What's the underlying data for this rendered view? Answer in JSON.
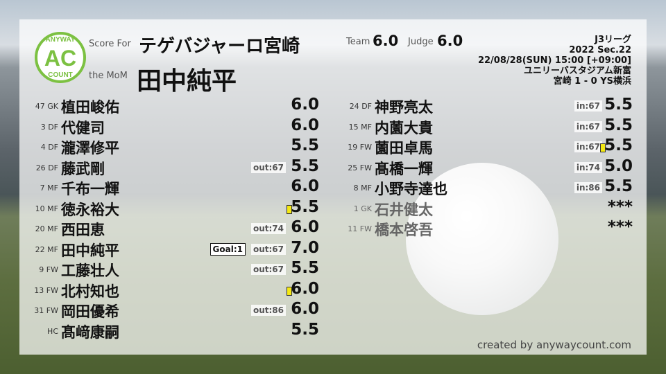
{
  "header": {
    "score_for_label": "Score For",
    "team_name": "テゲバジャーロ宮崎",
    "mom_label": "the MoM",
    "mom_name": "田中純平",
    "team_label": "Team",
    "team_score": "6.0",
    "judge_label": "Judge",
    "judge_score": "6.0"
  },
  "logo": {
    "top": "ANYWAY",
    "mid": "AC",
    "bottom": "COUNT",
    "color": "#7cc142"
  },
  "match": {
    "league": "J3リーグ",
    "section": "2022 Sec.22",
    "datetime": "22/08/28(SUN) 15:00 [+09:00]",
    "stadium": "ユニリーバスタジアム新富",
    "result": "宮崎 1 - 0 YS横浜"
  },
  "left_players": [
    {
      "num": "47",
      "pos": "GK",
      "name": "植田峻佑",
      "score": "6.0"
    },
    {
      "num": "3",
      "pos": "DF",
      "name": "代健司",
      "score": "6.0"
    },
    {
      "num": "4",
      "pos": "DF",
      "name": "瀧澤修平",
      "score": "5.5"
    },
    {
      "num": "26",
      "pos": "DF",
      "name": "藤武剛",
      "score": "5.5",
      "sub": "out:67"
    },
    {
      "num": "7",
      "pos": "MF",
      "name": "千布一輝",
      "score": "6.0"
    },
    {
      "num": "10",
      "pos": "MF",
      "name": "徳永裕大",
      "score": "5.5",
      "yellow": true
    },
    {
      "num": "20",
      "pos": "MF",
      "name": "西田恵",
      "score": "6.0",
      "sub": "out:74"
    },
    {
      "num": "22",
      "pos": "MF",
      "name": "田中純平",
      "score": "7.0",
      "sub": "out:67",
      "goal": "Goal:1"
    },
    {
      "num": "9",
      "pos": "FW",
      "name": "工藤壮人",
      "score": "5.5",
      "sub": "out:67"
    },
    {
      "num": "13",
      "pos": "FW",
      "name": "北村知也",
      "score": "6.0",
      "yellow": true
    },
    {
      "num": "31",
      "pos": "FW",
      "name": "岡田優希",
      "score": "6.0",
      "sub": "out:86"
    },
    {
      "num": "",
      "pos": "HC",
      "name": "髙﨑康嗣",
      "score": "5.5"
    }
  ],
  "right_players": [
    {
      "num": "24",
      "pos": "DF",
      "name": "神野亮太",
      "score": "5.5",
      "sub": "in:67"
    },
    {
      "num": "15",
      "pos": "MF",
      "name": "内薗大貴",
      "score": "5.5",
      "sub": "in:67"
    },
    {
      "num": "19",
      "pos": "FW",
      "name": "薗田卓馬",
      "score": "5.5",
      "sub": "in:67",
      "yellow": true
    },
    {
      "num": "25",
      "pos": "FW",
      "name": "髙橋一輝",
      "score": "5.0",
      "sub": "in:74"
    },
    {
      "num": "8",
      "pos": "MF",
      "name": "小野寺達也",
      "score": "5.5",
      "sub": "in:86"
    },
    {
      "num": "1",
      "pos": "GK",
      "name": "石井健太",
      "score": "***",
      "unused": true
    },
    {
      "num": "11",
      "pos": "FW",
      "name": "橋本啓吾",
      "score": "***",
      "unused": true
    }
  ],
  "footer": {
    "credit": "created by anywaycount.com"
  }
}
